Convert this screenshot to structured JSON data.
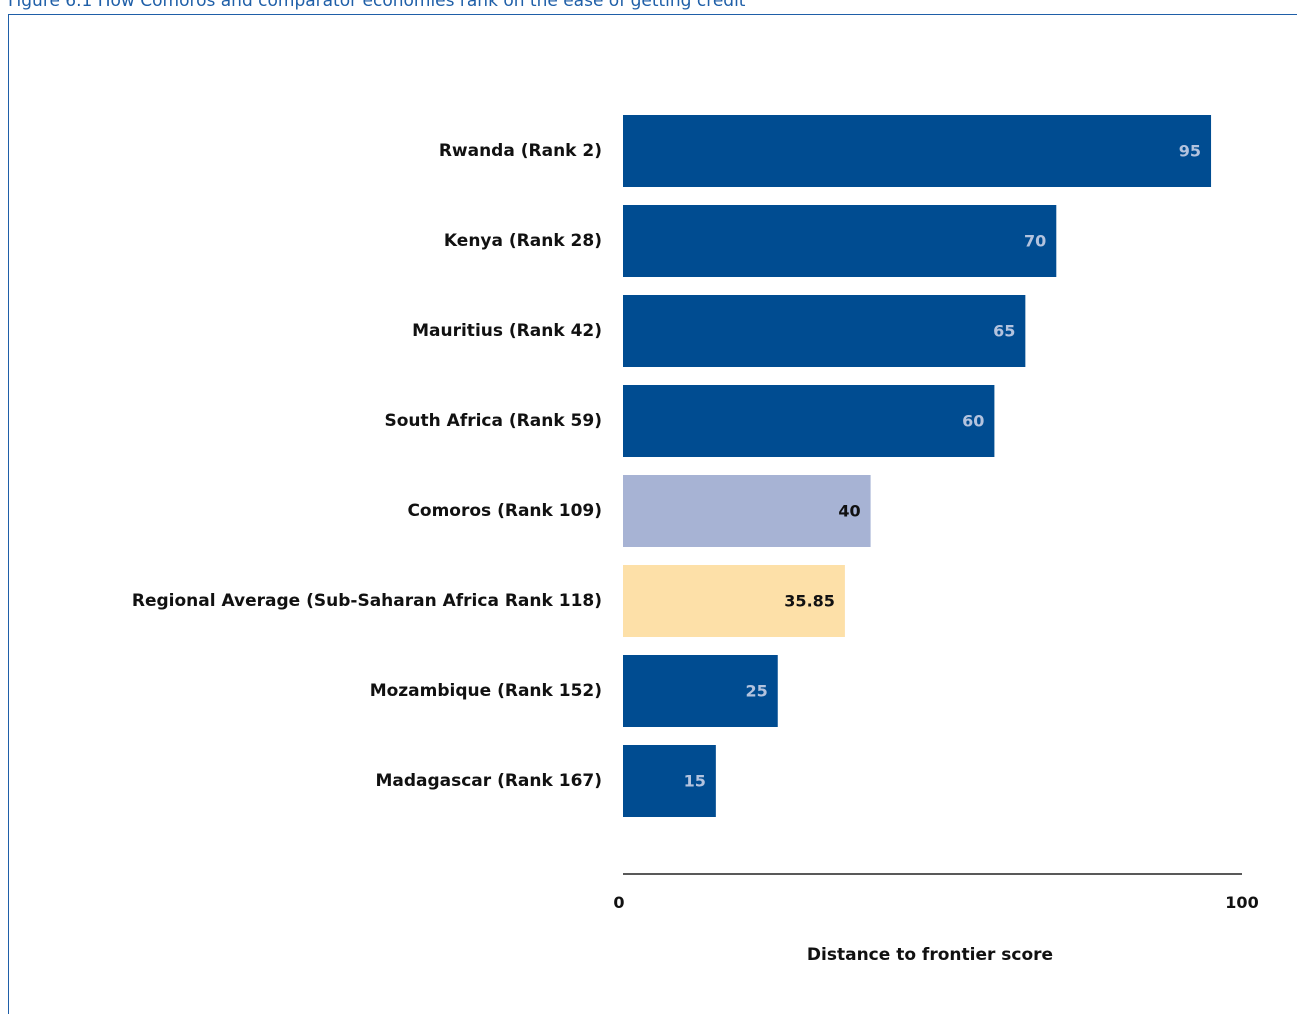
{
  "caption": "Figure 6.1 How Comoros and comparator economies rank on the ease of getting credit",
  "chart_data": {
    "type": "bar",
    "orientation": "horizontal",
    "categories": [
      "Rwanda (Rank 2)",
      "Kenya (Rank 28)",
      "Mauritius (Rank 42)",
      "South Africa (Rank 59)",
      "Comoros (Rank 109)",
      "Regional Average (Sub-Saharan Africa Rank 118)",
      "Mozambique (Rank 152)",
      "Madagascar (Rank 167)"
    ],
    "values": [
      95,
      70,
      65,
      60,
      40,
      35.85,
      25,
      15
    ],
    "value_labels": [
      "95",
      "70",
      "65",
      "60",
      "40",
      "35.85",
      "25",
      "15"
    ],
    "xlabel": "Distance to frontier score",
    "ylabel": "",
    "xlim": [
      0,
      100
    ],
    "xticks": [
      "0",
      "100"
    ],
    "grid": false,
    "colors": {
      "default": "#004c91",
      "default_label": "#b3c3de",
      "highlight": "#a7b3d4",
      "highlight_label": "#111111",
      "average": "#fde0a8",
      "average_label": "#111111"
    },
    "highlight_index": 4,
    "average_index": 5
  }
}
